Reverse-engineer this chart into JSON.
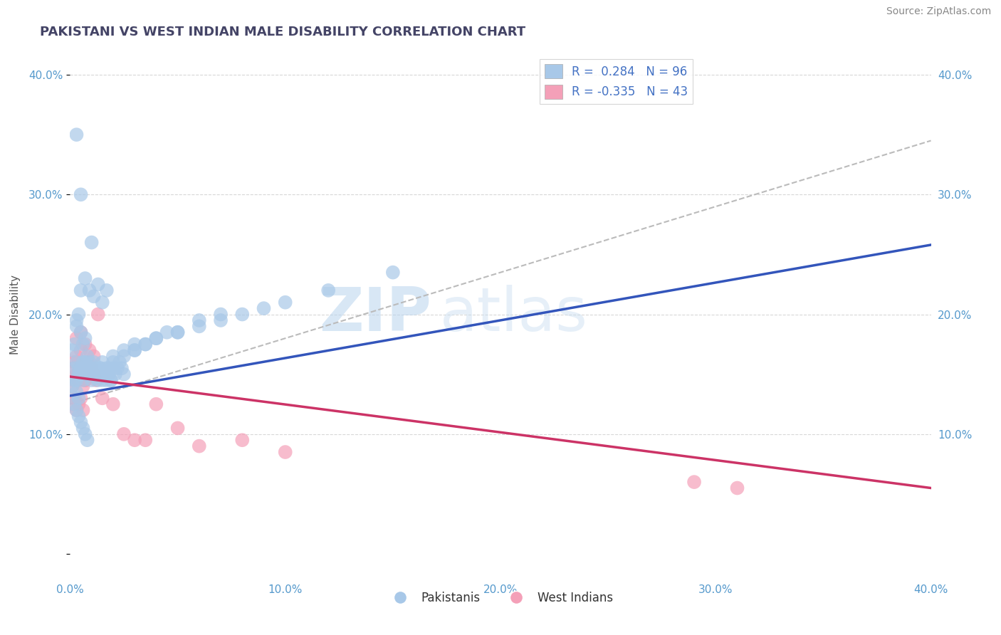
{
  "title": "PAKISTANI VS WEST INDIAN MALE DISABILITY CORRELATION CHART",
  "source": "Source: ZipAtlas.com",
  "ylabel": "Male Disability",
  "xlim": [
    0.0,
    0.4
  ],
  "ylim": [
    -0.02,
    0.42
  ],
  "x_ticks": [
    0.0,
    0.1,
    0.2,
    0.3,
    0.4
  ],
  "y_ticks": [
    0.0,
    0.1,
    0.2,
    0.3,
    0.4
  ],
  "x_tick_labels": [
    "0.0%",
    "",
    "",
    "",
    "40.0%"
  ],
  "y_tick_labels": [
    "",
    "10.0%",
    "20.0%",
    "30.0%",
    "40.0%"
  ],
  "pakistani_color": "#a8c8e8",
  "west_indian_color": "#f4a0b8",
  "pakistani_line_color": "#3355bb",
  "west_indian_line_color": "#cc3366",
  "pakistani_R": 0.284,
  "pakistani_N": 96,
  "west_indian_R": -0.335,
  "west_indian_N": 43,
  "legend_label_1": "Pakistanis",
  "legend_label_2": "West Indians",
  "watermark_zip": "ZIP",
  "watermark_atlas": "atlas",
  "background_color": "#ffffff",
  "grid_color": "#d8d8d8",
  "pak_line_x0": 0.0,
  "pak_line_y0": 0.132,
  "pak_line_x1": 0.4,
  "pak_line_y1": 0.258,
  "wi_line_x0": 0.0,
  "wi_line_y0": 0.148,
  "wi_line_x1": 0.4,
  "wi_line_y1": 0.055,
  "gray_line_x0": 0.0,
  "gray_line_y0": 0.125,
  "gray_line_x1": 0.4,
  "gray_line_y1": 0.345,
  "pakistani_x": [
    0.002,
    0.003,
    0.004,
    0.005,
    0.006,
    0.007,
    0.008,
    0.009,
    0.01,
    0.011,
    0.012,
    0.013,
    0.014,
    0.015,
    0.016,
    0.017,
    0.018,
    0.019,
    0.02,
    0.021,
    0.022,
    0.023,
    0.024,
    0.025,
    0.003,
    0.004,
    0.005,
    0.006,
    0.007,
    0.008,
    0.009,
    0.01,
    0.011,
    0.012,
    0.013,
    0.014,
    0.015,
    0.016,
    0.017,
    0.018,
    0.019,
    0.02,
    0.003,
    0.005,
    0.007,
    0.009,
    0.011,
    0.013,
    0.015,
    0.017,
    0.001,
    0.002,
    0.003,
    0.004,
    0.005,
    0.006,
    0.007,
    0.008,
    0.001,
    0.002,
    0.003,
    0.004,
    0.03,
    0.035,
    0.04,
    0.05,
    0.06,
    0.07,
    0.08,
    0.09,
    0.1,
    0.12,
    0.15,
    0.025,
    0.03,
    0.035,
    0.04,
    0.045,
    0.002,
    0.003,
    0.004,
    0.005,
    0.006,
    0.007,
    0.008,
    0.02,
    0.025,
    0.03,
    0.05,
    0.06,
    0.07,
    0.003,
    0.005,
    0.01
  ],
  "pakistani_y": [
    0.155,
    0.16,
    0.155,
    0.15,
    0.16,
    0.155,
    0.15,
    0.16,
    0.155,
    0.15,
    0.155,
    0.15,
    0.155,
    0.145,
    0.15,
    0.155,
    0.15,
    0.145,
    0.155,
    0.15,
    0.155,
    0.16,
    0.155,
    0.15,
    0.145,
    0.15,
    0.155,
    0.145,
    0.16,
    0.15,
    0.155,
    0.145,
    0.16,
    0.15,
    0.145,
    0.155,
    0.16,
    0.15,
    0.145,
    0.155,
    0.145,
    0.16,
    0.195,
    0.22,
    0.23,
    0.22,
    0.215,
    0.225,
    0.21,
    0.22,
    0.17,
    0.175,
    0.19,
    0.2,
    0.185,
    0.175,
    0.18,
    0.165,
    0.14,
    0.145,
    0.135,
    0.13,
    0.17,
    0.175,
    0.18,
    0.185,
    0.19,
    0.195,
    0.2,
    0.205,
    0.21,
    0.22,
    0.235,
    0.165,
    0.17,
    0.175,
    0.18,
    0.185,
    0.125,
    0.12,
    0.115,
    0.11,
    0.105,
    0.1,
    0.095,
    0.165,
    0.17,
    0.175,
    0.185,
    0.195,
    0.2,
    0.35,
    0.3,
    0.26
  ],
  "west_indian_x": [
    0.001,
    0.002,
    0.003,
    0.004,
    0.005,
    0.006,
    0.007,
    0.008,
    0.009,
    0.01,
    0.011,
    0.012,
    0.001,
    0.002,
    0.003,
    0.004,
    0.005,
    0.006,
    0.007,
    0.001,
    0.002,
    0.003,
    0.004,
    0.005,
    0.006,
    0.015,
    0.02,
    0.025,
    0.03,
    0.035,
    0.04,
    0.05,
    0.06,
    0.08,
    0.1,
    0.003,
    0.005,
    0.007,
    0.009,
    0.011,
    0.013,
    0.29,
    0.31
  ],
  "west_indian_y": [
    0.155,
    0.16,
    0.165,
    0.15,
    0.17,
    0.155,
    0.145,
    0.16,
    0.15,
    0.155,
    0.15,
    0.145,
    0.14,
    0.145,
    0.15,
    0.145,
    0.155,
    0.14,
    0.145,
    0.125,
    0.13,
    0.12,
    0.125,
    0.13,
    0.12,
    0.13,
    0.125,
    0.1,
    0.095,
    0.095,
    0.125,
    0.105,
    0.09,
    0.095,
    0.085,
    0.18,
    0.185,
    0.175,
    0.17,
    0.165,
    0.2,
    0.06,
    0.055
  ]
}
